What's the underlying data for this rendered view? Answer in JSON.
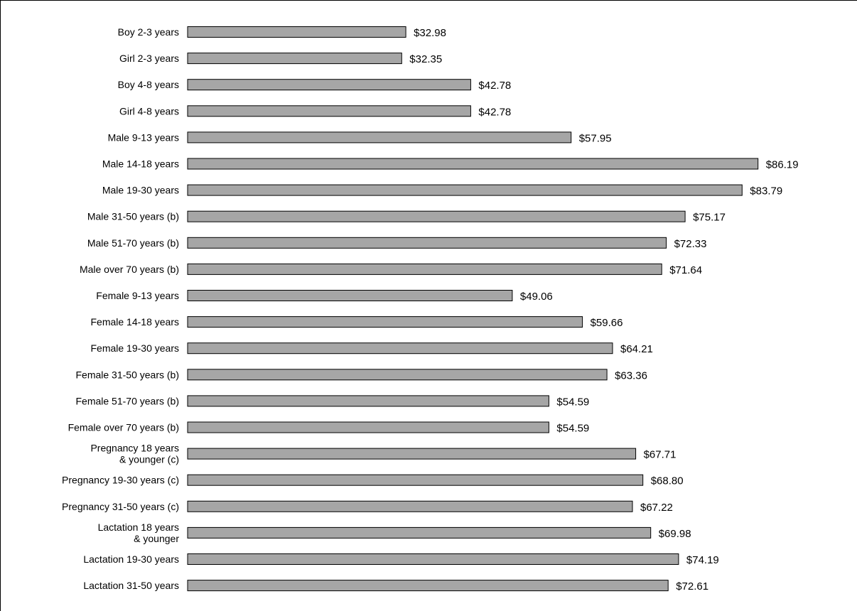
{
  "chart_data": {
    "type": "bar",
    "orientation": "horizontal",
    "title": "",
    "xlabel": "",
    "ylabel": "",
    "xlim": [
      0,
      100
    ],
    "grid": false,
    "legend": "none",
    "bar_color": "#a6a6a6",
    "categories": [
      [
        "Boy 2-3 years"
      ],
      [
        "Girl 2-3 years"
      ],
      [
        "Boy 4-8 years"
      ],
      [
        "Girl 4-8 years"
      ],
      [
        "Male 9-13 years"
      ],
      [
        "Male 14-18 years"
      ],
      [
        "Male 19-30 years"
      ],
      [
        "Male 31-50 years (b)"
      ],
      [
        "Male 51-70 years (b)"
      ],
      [
        "Male over 70 years (b)"
      ],
      [
        "Female 9-13 years"
      ],
      [
        "Female 14-18 years"
      ],
      [
        "Female 19-30 years"
      ],
      [
        "Female 31-50 years (b)"
      ],
      [
        "Female 51-70 years (b)"
      ],
      [
        "Female over 70 years (b)"
      ],
      [
        "Pregnancy 18 years",
        "& younger (c)"
      ],
      [
        "Pregnancy 19-30 years (c)"
      ],
      [
        "Pregnancy 31-50 years (c)"
      ],
      [
        "Lactation 18 years",
        "& younger"
      ],
      [
        "Lactation 19-30 years"
      ],
      [
        "Lactation 31-50 years"
      ]
    ],
    "values": [
      32.98,
      32.35,
      42.78,
      42.78,
      57.95,
      86.19,
      83.79,
      75.17,
      72.33,
      71.64,
      49.06,
      59.66,
      64.21,
      63.36,
      54.59,
      54.59,
      67.71,
      68.8,
      67.22,
      69.98,
      74.19,
      72.61
    ],
    "value_labels": [
      "$32.98",
      "$32.35",
      "$42.78",
      "$42.78",
      "$57.95",
      "$86.19",
      "$83.79",
      "$75.17",
      "$72.33",
      "$71.64",
      "$49.06",
      "$59.66",
      "$64.21",
      "$63.36",
      "$54.59",
      "$54.59",
      "$67.71",
      "$68.80",
      "$67.22",
      "$69.98",
      "$74.19",
      "$72.61"
    ]
  }
}
